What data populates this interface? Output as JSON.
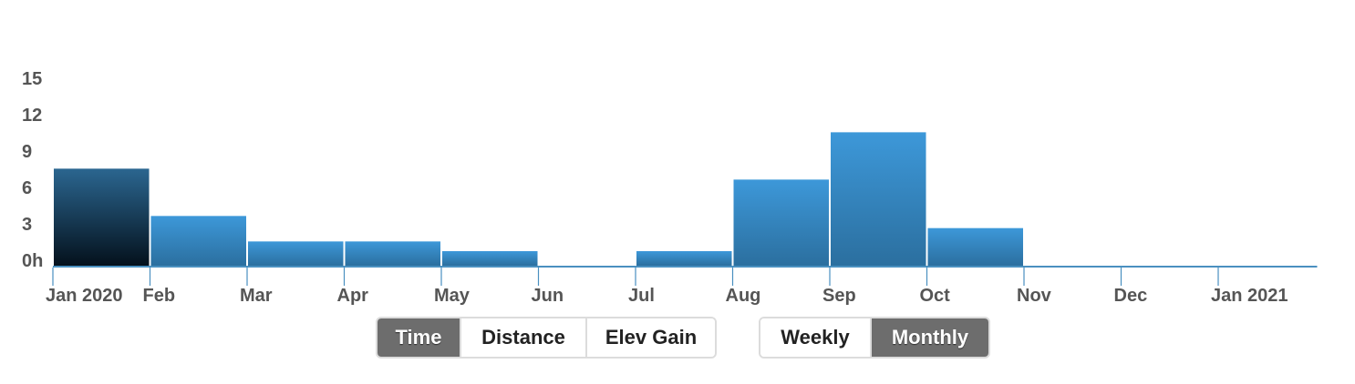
{
  "chart_data": {
    "type": "bar",
    "categories": [
      "Jan 2020",
      "Feb",
      "Mar",
      "Apr",
      "May",
      "Jun",
      "Jul",
      "Aug",
      "Sep",
      "Oct",
      "Nov",
      "Dec",
      "Jan 2021"
    ],
    "values": [
      8.0,
      4.1,
      2.0,
      2.0,
      1.2,
      0,
      1.2,
      7.1,
      11.0,
      3.1,
      0,
      0,
      0
    ],
    "ylim": [
      0,
      15
    ],
    "yticks": [
      "0h",
      "3",
      "6",
      "9",
      "12",
      "15"
    ],
    "grid": false,
    "highlighted_category": "Jan 2020",
    "colors": {
      "bar_top": "#3d98d9",
      "bar_bottom": "#2b6f9f",
      "highlight_top": "#2b6690",
      "highlight_bottom": "#04111c",
      "axis": "#4a90c0"
    }
  },
  "controls": {
    "metric_buttons": [
      {
        "label": "Time",
        "active": true
      },
      {
        "label": "Distance",
        "active": false
      },
      {
        "label": "Elev Gain",
        "active": false
      }
    ],
    "period_buttons": [
      {
        "label": "Weekly",
        "active": false
      },
      {
        "label": "Monthly",
        "active": true
      }
    ]
  }
}
